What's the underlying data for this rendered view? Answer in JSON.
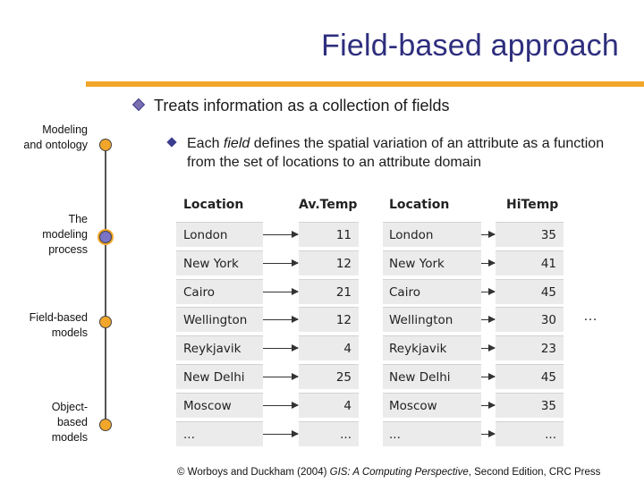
{
  "slide": {
    "title": "Field-based approach",
    "bullet1": "Treats information as a collection of fields",
    "bullet2": {
      "pre": "Each ",
      "emph": "field",
      "post": " defines the spatial variation of an attribute as a function from the set of locations to an attribute domain"
    },
    "side_ellipsis": "…",
    "credit": {
      "pre": "© Worboys and Duckham (2004) ",
      "emph": "GIS: A Computing Perspective",
      "post": ", Second Edition, CRC Press"
    }
  },
  "nav": {
    "items": [
      {
        "label_lines": [
          "Modeling",
          "and ontology"
        ],
        "active": false
      },
      {
        "label_lines": [
          "The",
          "modeling",
          "process"
        ],
        "active": true
      },
      {
        "label_lines": [
          "Field-based",
          "models"
        ],
        "active": false
      },
      {
        "label_lines": [
          "Object-",
          "based",
          "models"
        ],
        "active": false
      }
    ]
  },
  "table": {
    "headers": [
      "Location",
      "Av.Temp",
      "Location",
      "HiTemp"
    ],
    "rows": [
      [
        "London",
        "11",
        "London",
        "35"
      ],
      [
        "New York",
        "12",
        "New York",
        "41"
      ],
      [
        "Cairo",
        "21",
        "Cairo",
        "45"
      ],
      [
        "Wellington",
        "12",
        "Wellington",
        "30"
      ],
      [
        "Reykjavik",
        "4",
        "Reykjavik",
        "23"
      ],
      [
        "New Delhi",
        "25",
        "New Delhi",
        "45"
      ],
      [
        "Moscow",
        "4",
        "Moscow",
        "35"
      ],
      [
        "...",
        "...",
        "...",
        "..."
      ]
    ]
  },
  "colors": {
    "title": "#2e2e7e",
    "accent": "#f2a62a",
    "nav_active": "#7a73c6",
    "table_bg": "#ebebeb"
  }
}
